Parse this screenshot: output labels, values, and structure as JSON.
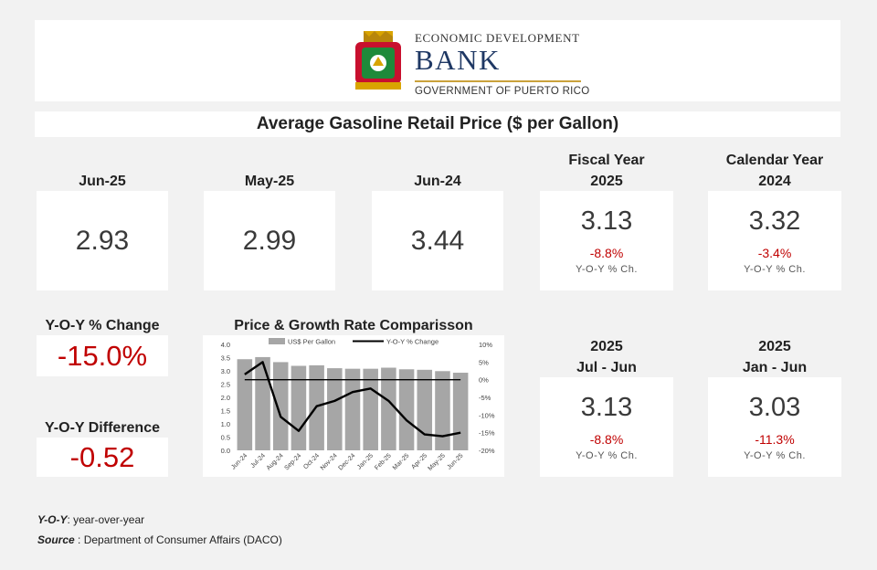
{
  "header": {
    "org_top": "ECONOMIC DEVELOPMENT",
    "org_main": "BANK",
    "org_bottom": "GOVERNMENT OF PUERTO RICO"
  },
  "title": "Average Gasoline Retail Price ($ per Gallon)",
  "cards": {
    "jun25": {
      "label": "Jun-25",
      "value": "2.93"
    },
    "may25": {
      "label": "May-25",
      "value": "2.99"
    },
    "jun24": {
      "label": "Jun-24",
      "value": "3.44"
    },
    "fiscal": {
      "label1": "Fiscal Year",
      "label2": "2025",
      "value": "3.13",
      "change": "-8.8%",
      "caption": "Y-O-Y % Ch."
    },
    "calendar": {
      "label1": "Calendar Year",
      "label2": "2024",
      "value": "3.32",
      "change": "-3.4%",
      "caption": "Y-O-Y % Ch."
    },
    "jul_jun": {
      "label1": "2025",
      "label2": "Jul - Jun",
      "value": "3.13",
      "change": "-8.8%",
      "caption": "Y-O-Y % Ch."
    },
    "jan_jun": {
      "label1": "2025",
      "label2": "Jan - Jun",
      "value": "3.03",
      "change": "-11.3%",
      "caption": "Y-O-Y % Ch."
    }
  },
  "yoy_change": {
    "label": "Y-O-Y % Change",
    "value": "-15.0%"
  },
  "yoy_diff": {
    "label": "Y-O-Y Difference",
    "value": "-0.52"
  },
  "notes": {
    "yoy_key": "Y-O-Y",
    "yoy_text": ": year-over-year",
    "source_key": "Source",
    "source_text": " : Department of Consumer Affairs (DACO)"
  },
  "chart_data": {
    "type": "bar",
    "title": "Price & Growth Rate Comparisson",
    "categories": [
      "Jun-24",
      "Jul-24",
      "Aug-24",
      "Sep-24",
      "Oct-24",
      "Nov-24",
      "Dec-24",
      "Jan-25",
      "Feb-25",
      "Mar-25",
      "Apr-25",
      "May-25",
      "Jun-25"
    ],
    "series": [
      {
        "name": "US$ Per Gallon",
        "type": "bar",
        "axis": "left",
        "color": "#a6a6a6",
        "values": [
          3.44,
          3.52,
          3.33,
          3.19,
          3.21,
          3.1,
          3.08,
          3.08,
          3.12,
          3.06,
          3.04,
          2.99,
          2.93
        ]
      },
      {
        "name": "Y-O-Y % Change",
        "type": "line",
        "axis": "right",
        "color": "#000000",
        "values": [
          1.5,
          5.0,
          -10.5,
          -14.5,
          -7.5,
          -6.0,
          -3.5,
          -2.5,
          -6.0,
          -11.5,
          -15.5,
          -16.0,
          -15.0
        ]
      },
      {
        "name": "",
        "type": "line",
        "axis": "right",
        "color": "#000000",
        "values": [
          0,
          0,
          0,
          0,
          0,
          0,
          0,
          0,
          0,
          0,
          0,
          0,
          0
        ]
      }
    ],
    "ylim_left": [
      0,
      4.0
    ],
    "yticks_left": [
      "0.0",
      "0.5",
      "1.0",
      "1.5",
      "2.0",
      "2.5",
      "3.0",
      "3.5",
      "4.0"
    ],
    "ylim_right": [
      -20,
      10
    ],
    "yticks_right": [
      "-20%",
      "-15%",
      "-10%",
      "-5%",
      "0%",
      "5%",
      "10%"
    ],
    "legend": "top",
    "grid": false
  }
}
